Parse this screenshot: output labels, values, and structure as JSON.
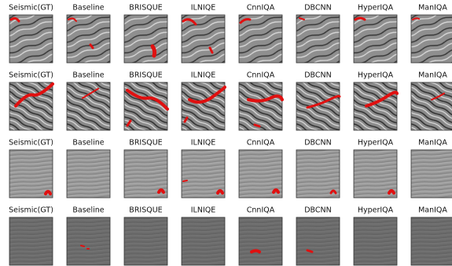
{
  "rows": [
    {
      "labels": [
        "Seismic(GT)",
        "Baseline",
        "BRISQUE",
        "ILNIQE",
        "CnnIQA",
        "DBCNN",
        "HyperIQA",
        "ManIQA"
      ]
    },
    {
      "labels": [
        "Seismic(GT)",
        "Baseline",
        "BRISQUE",
        "ILNIQE",
        "CnnIQA",
        "DBCNN",
        "HyperIQA",
        "ManIQA"
      ]
    },
    {
      "labels": [
        "Seismic(GT)",
        "Baseline",
        "BRISQUE",
        "ILNIQE",
        "CnnIQA",
        "DBCNN",
        "HyperIQA",
        "ManIQA"
      ]
    },
    {
      "labels": [
        "Seismic(GT)",
        "Baseline",
        "BRISQUE",
        "ILNIQE",
        "CnnIQA",
        "DBCNN",
        "HyperIQA",
        "ManIQA"
      ]
    }
  ]
}
